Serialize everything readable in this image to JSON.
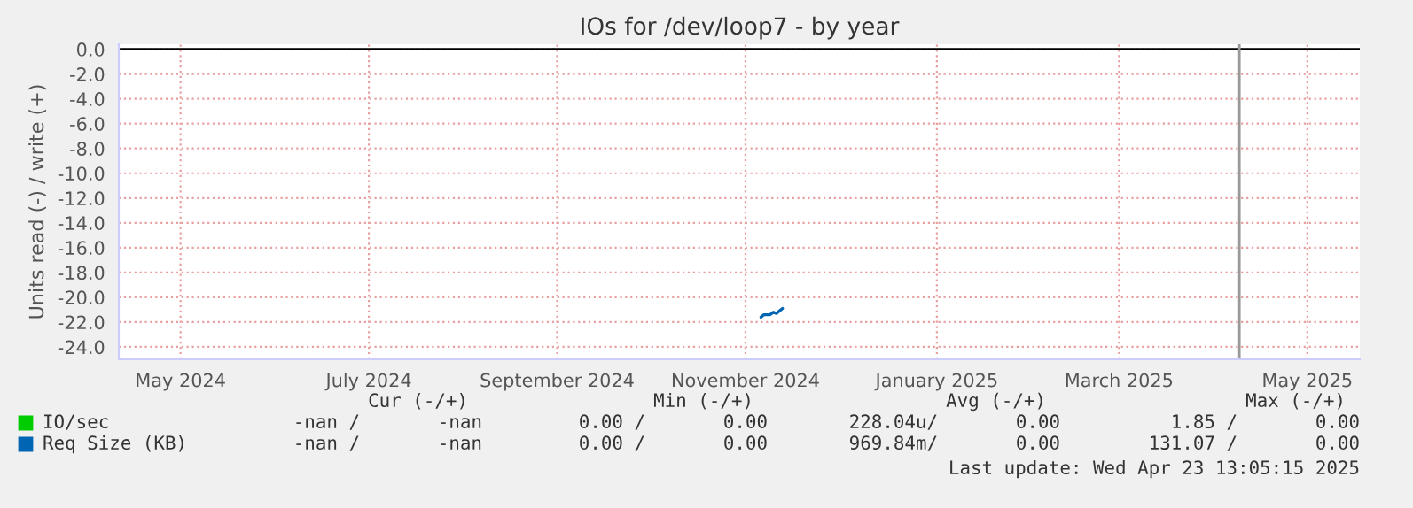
{
  "chart_data": {
    "type": "line",
    "title": "IOs for /dev/loop7 - by year",
    "ylabel": "Units read (-) / write (+)",
    "series": [
      {
        "name": "IO/sec",
        "color": "#00cc00"
      },
      {
        "name": "Req Size (KB)",
        "color": "#0066b3",
        "x": [
          "2024-11-20",
          "2024-11-21",
          "2024-11-23",
          "2024-11-24",
          "2024-11-25",
          "2024-11-27"
        ],
        "values": [
          -21.6,
          -21.4,
          -21.4,
          -21.2,
          -21.3,
          -20.9
        ]
      }
    ],
    "xlim": [
      "2024-04-26",
      "2025-06-02"
    ],
    "xticks": [
      {
        "value": "2024-05-16",
        "label": "May 2024"
      },
      {
        "value": "2024-07-16",
        "label": "July 2024"
      },
      {
        "value": "2024-09-15",
        "label": "September 2024"
      },
      {
        "value": "2024-11-15",
        "label": "November 2024"
      },
      {
        "value": "2025-01-16",
        "label": "January 2025"
      },
      {
        "value": "2025-03-16",
        "label": "March 2025"
      },
      {
        "value": "2025-05-16",
        "label": "May 2025"
      }
    ],
    "ylim": [
      -25,
      0.4
    ],
    "yticks": [
      {
        "value": 0,
        "label": "0.0"
      },
      {
        "value": -2,
        "label": "-2.0"
      },
      {
        "value": -4,
        "label": "-4.0"
      },
      {
        "value": -6,
        "label": "-6.0"
      },
      {
        "value": -8,
        "label": "-8.0"
      },
      {
        "value": -10,
        "label": "-10.0"
      },
      {
        "value": -12,
        "label": "-12.0"
      },
      {
        "value": -14,
        "label": "-14.0"
      },
      {
        "value": -16,
        "label": "-16.0"
      },
      {
        "value": -18,
        "label": "-18.0"
      },
      {
        "value": -20,
        "label": "-20.0"
      },
      {
        "value": -22,
        "label": "-22.0"
      },
      {
        "value": -24,
        "label": "-24.0"
      }
    ],
    "ref_lines": [
      {
        "axis": "y",
        "value": 0,
        "color": "#000000"
      },
      {
        "axis": "x",
        "value": "2025-04-24",
        "color": "#999999"
      }
    ],
    "grid": true,
    "legend": "bottom",
    "annotations": [
      "Cur (-/+)",
      "Min (-/+)",
      "Avg (-/+)",
      "Max (-/+)",
      "-nan /       -nan",
      "0.00 /       0.00",
      "228.04u/       0.00",
      "1.85 /       0.00",
      "-nan /       -nan",
      "0.00 /       0.00",
      "969.84m/       0.00",
      "131.07 /       0.00",
      "Last update: Wed Apr 23 13:05:15 2025"
    ]
  }
}
